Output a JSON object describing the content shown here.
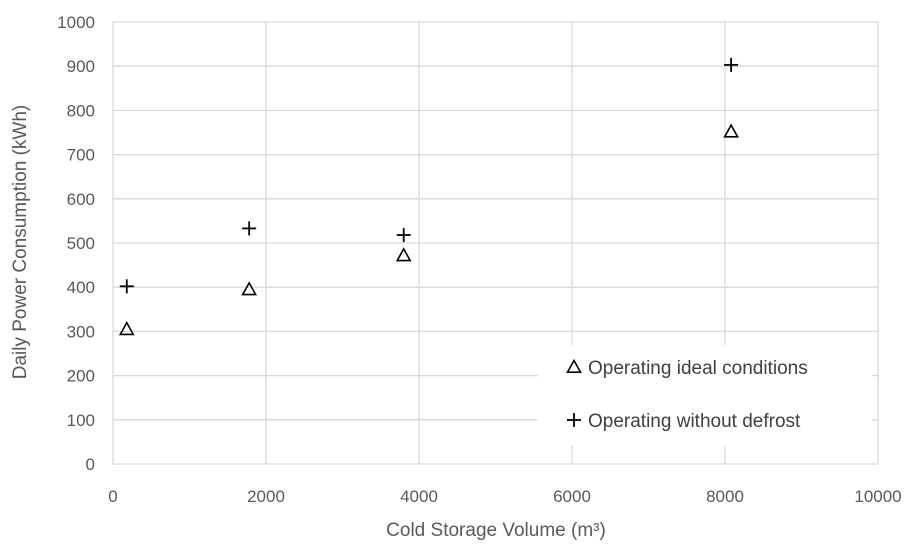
{
  "chart_data": {
    "type": "scatter",
    "title": "",
    "xlabel": "Cold Storage Volume (m³)",
    "ylabel": "Daily Power Consumption (kWh)",
    "xlim": [
      0,
      10000
    ],
    "ylim": [
      0,
      1000
    ],
    "xticks": [
      0,
      2000,
      4000,
      6000,
      8000,
      10000
    ],
    "yticks": [
      0,
      100,
      200,
      300,
      400,
      500,
      600,
      700,
      800,
      900,
      1000
    ],
    "xtick_labels": [
      "0",
      "2000",
      "4000",
      "6000",
      "8000",
      "10000"
    ],
    "ytick_labels": [
      "0",
      "100",
      "200",
      "300",
      "400",
      "500",
      "600",
      "700",
      "800",
      "900",
      "1000"
    ],
    "grid": true,
    "legend_position": "bottom-right",
    "series": [
      {
        "name": "Operating ideal conditions",
        "marker": "triangle",
        "color": "#000000",
        "points": [
          {
            "x": 180,
            "y": 305
          },
          {
            "x": 1780,
            "y": 395
          },
          {
            "x": 3800,
            "y": 472
          },
          {
            "x": 8080,
            "y": 752
          }
        ]
      },
      {
        "name": "Operating without defrost",
        "marker": "plus",
        "color": "#000000",
        "points": [
          {
            "x": 180,
            "y": 402
          },
          {
            "x": 1780,
            "y": 533
          },
          {
            "x": 3800,
            "y": 518
          },
          {
            "x": 8080,
            "y": 903
          }
        ]
      }
    ]
  }
}
